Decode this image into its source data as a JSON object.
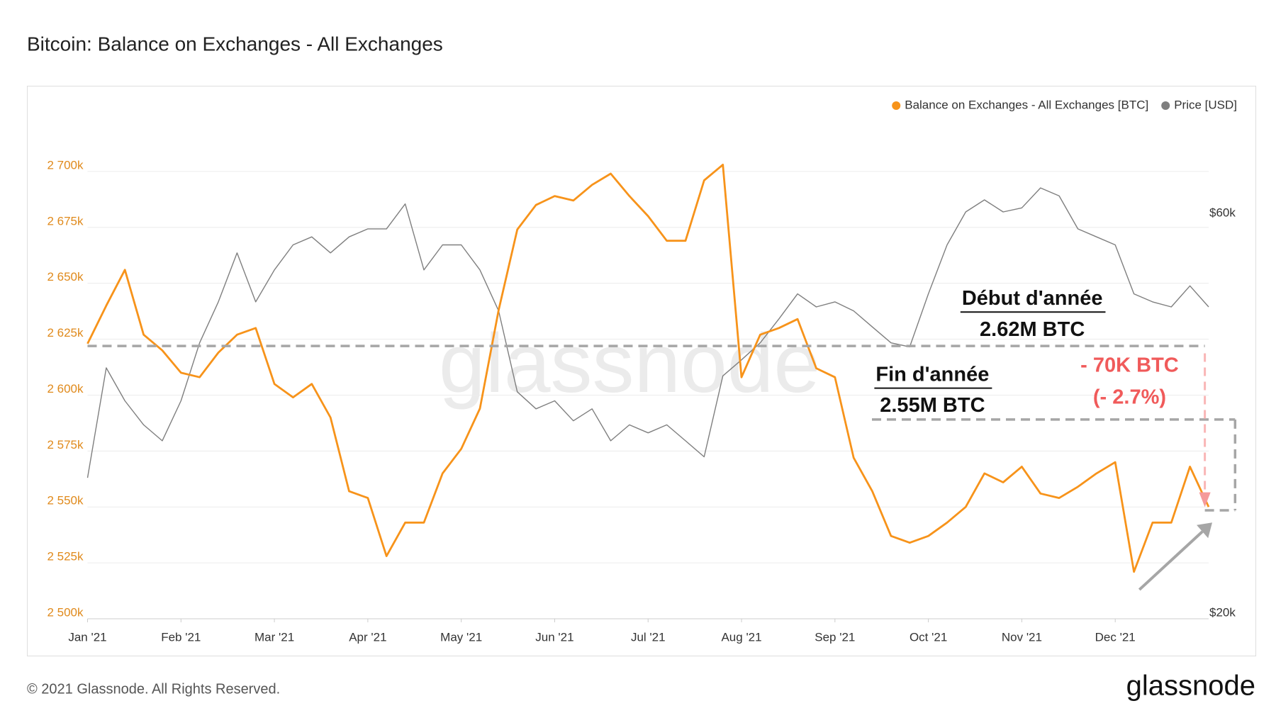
{
  "chart_data": {
    "type": "line",
    "title": "Bitcoin: Balance on Exchanges - All Exchanges",
    "footer": "© 2021 Glassnode. All Rights Reserved.",
    "logo": "glassnode",
    "watermark": "glassnode",
    "legend": "top-right",
    "grid": true,
    "categories": [
      "Jan '21",
      null,
      null,
      null,
      null,
      "Feb '21",
      null,
      null,
      null,
      null,
      "Mar '21",
      null,
      null,
      null,
      null,
      "Apr '21",
      null,
      null,
      null,
      null,
      "May '21",
      null,
      null,
      null,
      null,
      "Jun '21",
      null,
      null,
      null,
      null,
      "Jul '21",
      null,
      null,
      null,
      null,
      "Aug '21",
      null,
      null,
      null,
      null,
      "Sep '21",
      null,
      null,
      null,
      null,
      "Oct '21",
      null,
      null,
      null,
      null,
      "Nov '21",
      null,
      null,
      null,
      null,
      "Dec '21",
      null,
      null,
      null,
      null,
      null
    ],
    "series": [
      {
        "name": "Balance on Exchanges - All Exchanges [BTC]",
        "color": "#f7931a",
        "axis": "y",
        "values": [
          2623000,
          2640000,
          2656000,
          2627000,
          2620000,
          2610000,
          2608000,
          2619000,
          2627000,
          2630000,
          2605000,
          2599000,
          2605000,
          2590000,
          2557000,
          2554000,
          2528000,
          2543000,
          2543000,
          2565000,
          2576000,
          2594000,
          2638000,
          2674000,
          2685000,
          2689000,
          2687000,
          2694000,
          2699000,
          2689000,
          2680000,
          2669000,
          2669000,
          2696000,
          2703000,
          2608000,
          2627000,
          2630000,
          2634000,
          2612000,
          2608000,
          2572000,
          2557000,
          2537000,
          2534000,
          2537000,
          2543000,
          2550000,
          2565000,
          2561000,
          2568000,
          2556000,
          2554000,
          2559000,
          2565000,
          2570000,
          2521000,
          2543000,
          2543000,
          2568000,
          2550000
        ]
      },
      {
        "name": "Price [USD]",
        "color": "#7f7f7f",
        "axis": "y2",
        "values": [
          34100,
          45100,
          41800,
          39400,
          37800,
          41800,
          47600,
          51700,
          56600,
          51700,
          54900,
          57400,
          58200,
          56600,
          58200,
          59000,
          59000,
          61500,
          54900,
          57400,
          57400,
          54900,
          50800,
          42700,
          41000,
          41800,
          39800,
          41000,
          37800,
          39400,
          38600,
          39400,
          37800,
          36200,
          44300,
          45900,
          47600,
          50000,
          52500,
          51200,
          51700,
          50800,
          49200,
          47600,
          47200,
          52500,
          57400,
          60700,
          61900,
          60700,
          61100,
          63100,
          62300,
          59000,
          58200,
          57400,
          52500,
          51700,
          51200,
          53300,
          51200
        ]
      }
    ],
    "ylim": [
      2500000,
      2725000
    ],
    "yticks": [
      {
        "value": 2500000,
        "label": "2 500k"
      },
      {
        "value": 2525000,
        "label": "2 525k"
      },
      {
        "value": 2550000,
        "label": "2 550k"
      },
      {
        "value": 2575000,
        "label": "2 575k"
      },
      {
        "value": 2600000,
        "label": "2 600k"
      },
      {
        "value": 2625000,
        "label": "2 625k"
      },
      {
        "value": 2650000,
        "label": "2 650k"
      },
      {
        "value": 2675000,
        "label": "2 675k"
      },
      {
        "value": 2700000,
        "label": "2 700k"
      }
    ],
    "y2lim": [
      20000,
      70340
    ],
    "y2ticks": [
      {
        "value": 20000,
        "label": "$20k"
      },
      {
        "value": 60000,
        "label": "$60k"
      }
    ],
    "annotations": [
      {
        "text": "Début d'année",
        "underline": true
      },
      {
        "text": "2.62M BTC",
        "underline": false
      },
      {
        "text": "Fin d'année",
        "underline": true
      },
      {
        "text": "2.55M BTC",
        "underline": false
      },
      {
        "text": "- 70K BTC",
        "underline": false,
        "color": "#f05a5a"
      },
      {
        "text": "(- 2.7%)",
        "underline": false,
        "color": "#f05a5a"
      }
    ]
  }
}
